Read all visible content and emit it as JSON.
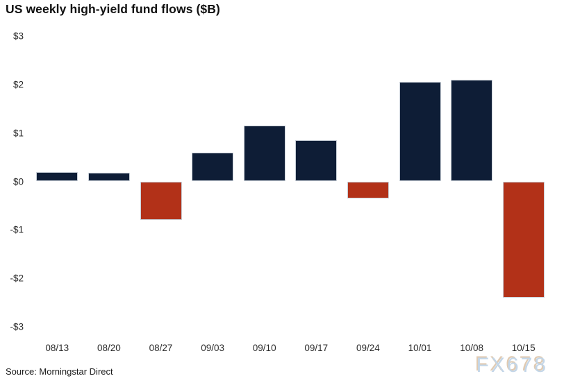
{
  "page": {
    "title": "US weekly high-yield fund flows ($B)",
    "source": "Source: Morningstar Direct",
    "watermark": "FX678"
  },
  "chart_data": {
    "type": "bar",
    "title": "US weekly high-yield fund flows ($B)",
    "categories": [
      "08/13",
      "08/20",
      "08/27",
      "09/03",
      "09/10",
      "09/17",
      "09/24",
      "10/01",
      "10/08",
      "10/15"
    ],
    "values": [
      0.2,
      0.18,
      -0.8,
      0.6,
      1.15,
      0.85,
      -0.35,
      2.05,
      2.1,
      -2.4
    ],
    "xlabel": "",
    "ylabel": "",
    "ylim": [
      -3,
      3
    ],
    "y_ticks": [
      {
        "label": "$3",
        "value": 3
      },
      {
        "label": "$2",
        "value": 2
      },
      {
        "label": "$1",
        "value": 1
      },
      {
        "label": "$0",
        "value": 0
      },
      {
        "label": "-$1",
        "value": -1
      },
      {
        "label": "-$2",
        "value": -2
      },
      {
        "label": "-$3",
        "value": -3
      }
    ],
    "grid": false,
    "legend": false,
    "colors": {
      "positive": "#0e1d36",
      "negative": "#b23118",
      "bar_border": "#c9d0d8"
    }
  }
}
